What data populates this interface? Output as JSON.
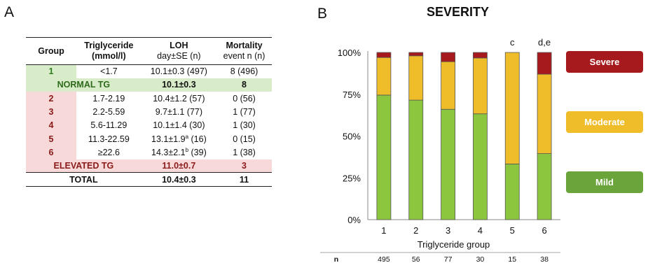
{
  "panel_a_label": "A",
  "panel_b_label": "B",
  "table": {
    "headers": [
      {
        "line1": "Group",
        "line2": ""
      },
      {
        "line1": "Triglyceride",
        "line2": "(mmol/l)"
      },
      {
        "line1": "LOH",
        "line2": "day±SE (n)"
      },
      {
        "line1": "Mortality",
        "line2": "event n (n)"
      }
    ],
    "rows": [
      {
        "group": "1",
        "tg": "<1.7",
        "loh": "10.1±0.3 (497)",
        "mortality": "8 (496)"
      },
      {
        "group": "2",
        "tg": "1.7-2.19",
        "loh": "10.4±1.2 (57)",
        "mortality": "0 (56)"
      },
      {
        "group": "3",
        "tg": "2.2-5.59",
        "loh": "9.7±1.1 (77)",
        "mortality": "1 (77)"
      },
      {
        "group": "4",
        "tg": "5.6-11.29",
        "loh": "10.1±1.4 (30)",
        "mortality": "1 (30)"
      },
      {
        "group": "5",
        "tg": "11.3-22.59",
        "loh_main": "13.1±1.9",
        "loh_sup": "a",
        "loh_rest": " (16)",
        "mortality": "0 (15)"
      },
      {
        "group": "6",
        "tg": "≥22.6",
        "loh_main": "14.3±2.1",
        "loh_sup": "b",
        "loh_rest": " (39)",
        "mortality": "1 (38)"
      }
    ],
    "normal_summary": {
      "label": "NORMAL TG",
      "loh": "10.1±0.3",
      "mortality": "8"
    },
    "elevated_summary": {
      "label": "ELEVATED TG",
      "loh": "11.0±0.7",
      "mortality": "3"
    },
    "total": {
      "label": "TOTAL",
      "loh": "10.4±0.3",
      "mortality": "11"
    }
  },
  "chart_data": {
    "type": "bar",
    "stacked": true,
    "title": "SEVERITY",
    "xlabel": "Triglyceride group",
    "ylabel": "",
    "categories": [
      "1",
      "2",
      "3",
      "4",
      "5",
      "6"
    ],
    "ylim": [
      0,
      100
    ],
    "yticks": [
      "0%",
      "25%",
      "50%",
      "75%",
      "100%"
    ],
    "series": [
      {
        "name": "Mild",
        "color": "#8cc63f",
        "values": [
          74.5,
          71.5,
          66,
          63.3,
          33.3,
          39.5
        ]
      },
      {
        "name": "Moderate",
        "color": "#efbd2a",
        "values": [
          22.5,
          26.5,
          28.5,
          33.4,
          66.7,
          47.5
        ]
      },
      {
        "name": "Severe",
        "color": "#a6191c",
        "values": [
          3,
          2,
          5.5,
          3.3,
          0,
          13
        ]
      }
    ],
    "annotations": [
      "",
      "",
      "",
      "",
      "c",
      "d,e"
    ],
    "n_label": "n",
    "n_values": [
      "495",
      "56",
      "77",
      "30",
      "15",
      "38"
    ],
    "legend_placement": "right"
  }
}
